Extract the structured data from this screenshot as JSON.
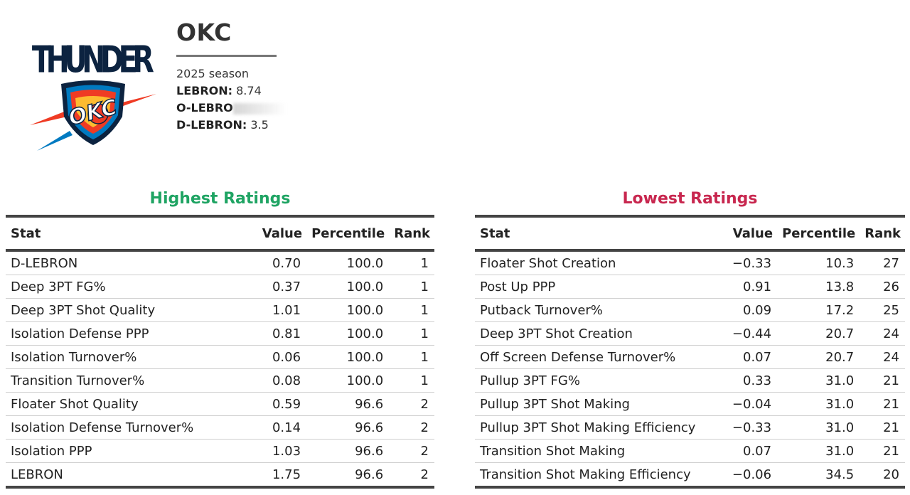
{
  "team": {
    "name": "OKC",
    "season": "2025 season",
    "lebron_label": "LEBRON:",
    "lebron_value": "8.74",
    "olebron_label": "O-LEBRO",
    "dlebron_label": "D-LEBRON:",
    "dlebron_value": "3.5",
    "logo": {
      "wordmark": "THUNDER",
      "shield_text": "OKC",
      "colors": {
        "navy": "#0c2340",
        "orange": "#ef3b24",
        "yellow": "#fdbb30",
        "blue": "#007ac1"
      }
    }
  },
  "highest": {
    "title": "Highest Ratings",
    "color": "#1fa463",
    "headers": {
      "stat": "Stat",
      "value": "Value",
      "percentile": "Percentile",
      "rank": "Rank"
    },
    "rows": [
      {
        "stat": "D-LEBRON",
        "value": "0.70",
        "percentile": "100.0",
        "rank": "1"
      },
      {
        "stat": "Deep 3PT FG%",
        "value": "0.37",
        "percentile": "100.0",
        "rank": "1"
      },
      {
        "stat": "Deep 3PT Shot Quality",
        "value": "1.01",
        "percentile": "100.0",
        "rank": "1"
      },
      {
        "stat": "Isolation Defense PPP",
        "value": "0.81",
        "percentile": "100.0",
        "rank": "1"
      },
      {
        "stat": "Isolation Turnover%",
        "value": "0.06",
        "percentile": "100.0",
        "rank": "1"
      },
      {
        "stat": "Transition Turnover%",
        "value": "0.08",
        "percentile": "100.0",
        "rank": "1"
      },
      {
        "stat": "Floater Shot Quality",
        "value": "0.59",
        "percentile": "96.6",
        "rank": "2"
      },
      {
        "stat": "Isolation Defense Turnover%",
        "value": "0.14",
        "percentile": "96.6",
        "rank": "2"
      },
      {
        "stat": "Isolation PPP",
        "value": "1.03",
        "percentile": "96.6",
        "rank": "2"
      },
      {
        "stat": "LEBRON",
        "value": "1.75",
        "percentile": "96.6",
        "rank": "2"
      }
    ]
  },
  "lowest": {
    "title": "Lowest Ratings",
    "color": "#c8274f",
    "headers": {
      "stat": "Stat",
      "value": "Value",
      "percentile": "Percentile",
      "rank": "Rank"
    },
    "rows": [
      {
        "stat": "Floater Shot Creation",
        "value": "−0.33",
        "percentile": "10.3",
        "rank": "27"
      },
      {
        "stat": "Post Up PPP",
        "value": "0.91",
        "percentile": "13.8",
        "rank": "26"
      },
      {
        "stat": "Putback Turnover%",
        "value": "0.09",
        "percentile": "17.2",
        "rank": "25"
      },
      {
        "stat": "Deep 3PT Shot Creation",
        "value": "−0.44",
        "percentile": "20.7",
        "rank": "24"
      },
      {
        "stat": "Off Screen Defense Turnover%",
        "value": "0.07",
        "percentile": "20.7",
        "rank": "24"
      },
      {
        "stat": "Pullup 3PT FG%",
        "value": "0.33",
        "percentile": "31.0",
        "rank": "21"
      },
      {
        "stat": "Pullup 3PT Shot Making",
        "value": "−0.04",
        "percentile": "31.0",
        "rank": "21"
      },
      {
        "stat": "Pullup 3PT Shot Making Efficiency",
        "value": "−0.33",
        "percentile": "31.0",
        "rank": "21"
      },
      {
        "stat": "Transition Shot Making",
        "value": "0.07",
        "percentile": "31.0",
        "rank": "21"
      },
      {
        "stat": "Transition Shot Making Efficiency",
        "value": "−0.06",
        "percentile": "34.5",
        "rank": "20"
      }
    ]
  }
}
